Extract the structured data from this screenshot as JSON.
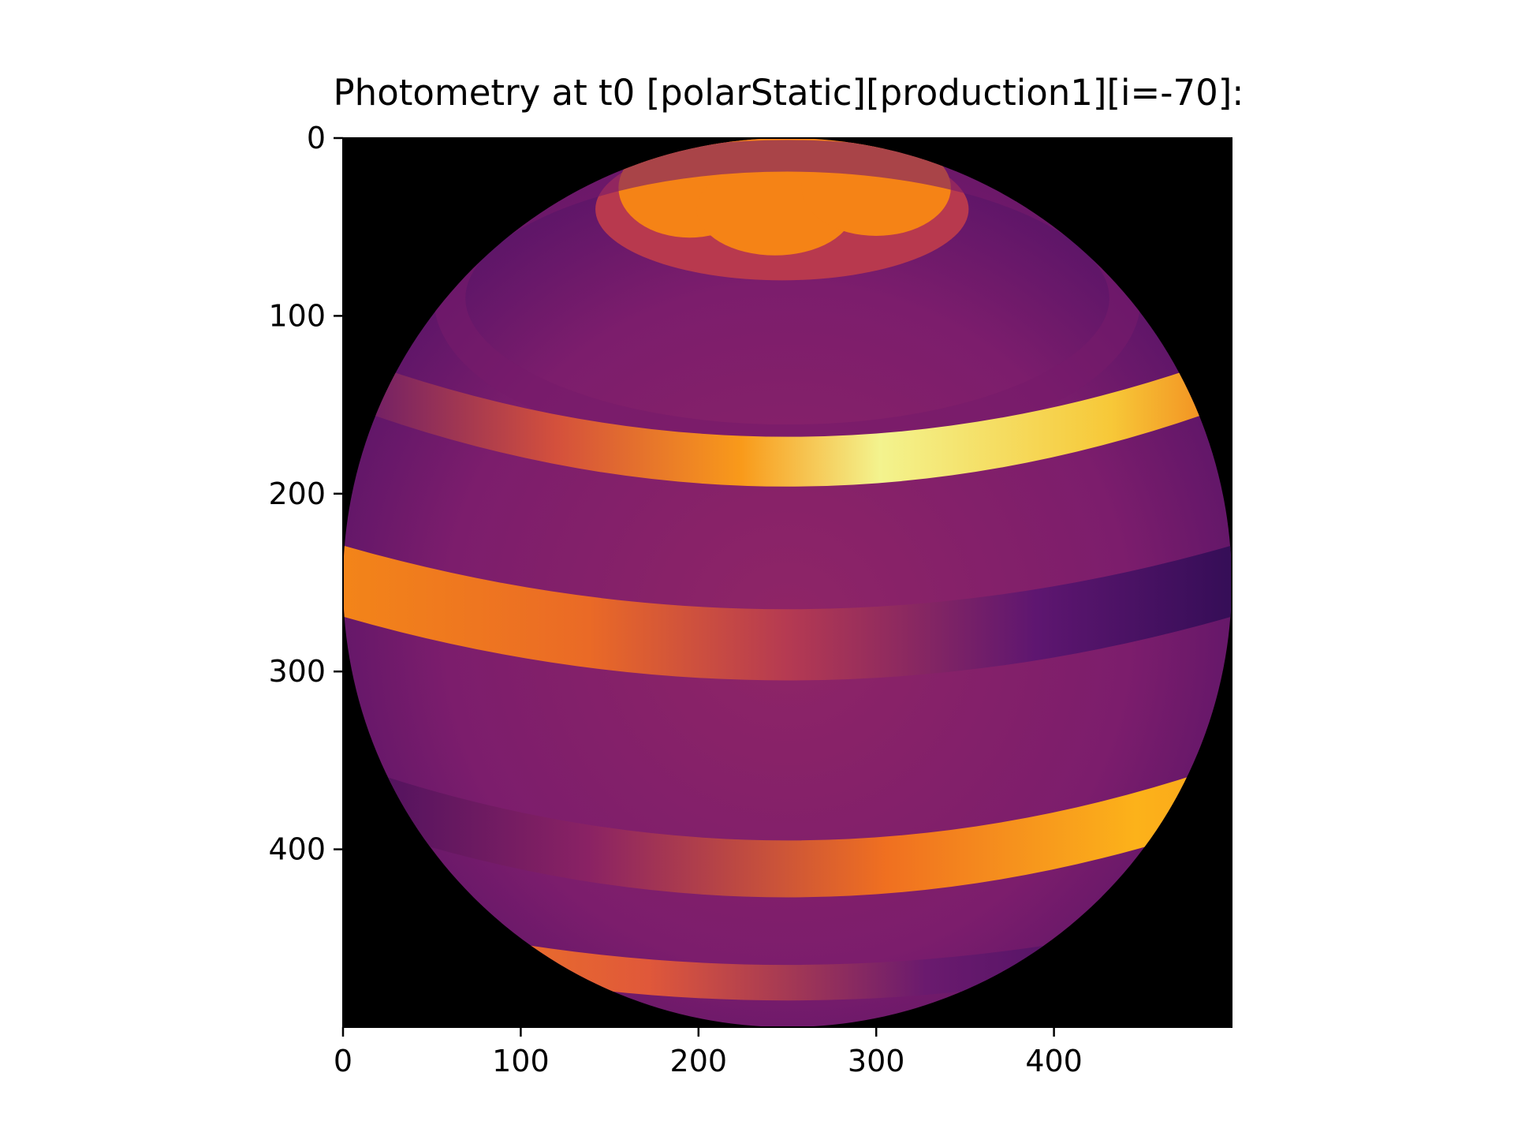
{
  "chart_data": {
    "type": "heatmap",
    "title": "Photometry at t0 [polarStatic][production1][i=-70]:",
    "xlabel": "",
    "ylabel": "",
    "image_size": [
      500,
      500
    ],
    "xlim": [
      0,
      500
    ],
    "ylim": [
      500,
      0
    ],
    "y_inverted": true,
    "x_ticks": [
      0,
      100,
      200,
      300,
      400
    ],
    "y_ticks": [
      0,
      100,
      200,
      300,
      400
    ],
    "colormap": "inferno",
    "background_color": "#000000",
    "grid": false,
    "legend": "none",
    "image_description": "rendered stellar disk with bright latitude bands and polar spots"
  }
}
